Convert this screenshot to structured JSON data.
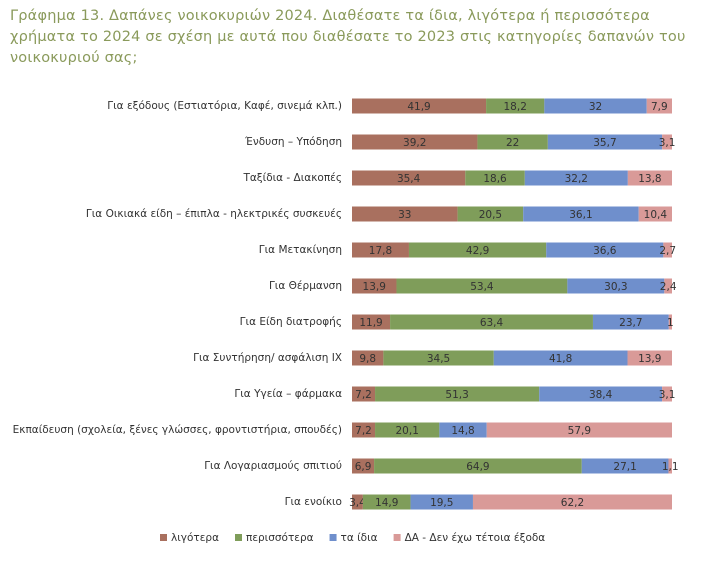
{
  "chart_data": {
    "type": "stacked-bar-horizontal",
    "title": "Γράφημα 13. Δαπάνες νοικοκυριών 2024. Διαθέσατε τα ίδια, λιγότερα ή περισσότερα χρήματα το 2024 σε σχέση με αυτά που διαθέσατε το 2023 στις κατηγορίες δαπανών του νοικοκυριού σας;",
    "categories": [
      "Για εξόδους (Εστιατόρια, Καφέ, σινεμά κλπ.)",
      "Ένδυση – Υπόδηση",
      "Ταξίδια - Διακοπές",
      "Για Οικιακά είδη – έπιπλα - ηλεκτρικές συσκευές",
      "Για Μετακίνηση",
      "Για Θέρμανση",
      "Για Είδη διατροφής",
      "Για Συντήρηση/ ασφάλιση ΙΧ",
      "Για Υγεία – φάρμακα",
      "Εκπαίδευση (σχολεία, ξένες γλώσσες, φροντιστήρια, σπουδές)",
      "Για Λογαριασμούς σπιτιού",
      "Για ενοίκιο"
    ],
    "xlim": [
      0,
      100
    ],
    "series": [
      {
        "name": "λιγότερα",
        "color": "#a9705f",
        "values": [
          41.9,
          39.2,
          35.4,
          33,
          17.8,
          13.9,
          11.9,
          9.8,
          7.2,
          7.2,
          6.9,
          3.4
        ],
        "value_labels": [
          "41,9",
          "39,2",
          "35,4",
          "33",
          "17,8",
          "13,9",
          "11,9",
          "9,8",
          "7,2",
          "7,2",
          "6,9",
          "3,4"
        ]
      },
      {
        "name": "περισσότερα",
        "color": "#7f9d5a",
        "values": [
          18.2,
          22,
          18.6,
          20.5,
          42.9,
          53.4,
          63.4,
          34.5,
          51.3,
          20.1,
          64.9,
          14.9
        ],
        "value_labels": [
          "18,2",
          "22",
          "18,6",
          "20,5",
          "42,9",
          "53,4",
          "63,4",
          "34,5",
          "51,3",
          "20,1",
          "64,9",
          "14,9"
        ]
      },
      {
        "name": "τα ίδια",
        "color": "#6f8fcc",
        "values": [
          32,
          35.7,
          32.2,
          36.1,
          36.6,
          30.3,
          23.7,
          41.8,
          38.4,
          14.8,
          27.1,
          19.5
        ],
        "value_labels": [
          "32",
          "35,7",
          "32,2",
          "36,1",
          "36,6",
          "30,3",
          "23,7",
          "41,8",
          "38,4",
          "14,8",
          "27,1",
          "19,5"
        ]
      },
      {
        "name": "ΔΑ - Δεν έχω τέτοια έξοδα",
        "color": "#d99a98",
        "values": [
          7.9,
          3.1,
          13.8,
          10.4,
          2.7,
          2.4,
          1,
          13.9,
          3.1,
          57.9,
          1.1,
          62.2
        ],
        "value_labels": [
          "7,9",
          "3,1",
          "13,8",
          "10,4",
          "2,7",
          "2,4",
          "1",
          "13,9",
          "3,1",
          "57,9",
          "1,1",
          "62,2"
        ]
      }
    ]
  }
}
